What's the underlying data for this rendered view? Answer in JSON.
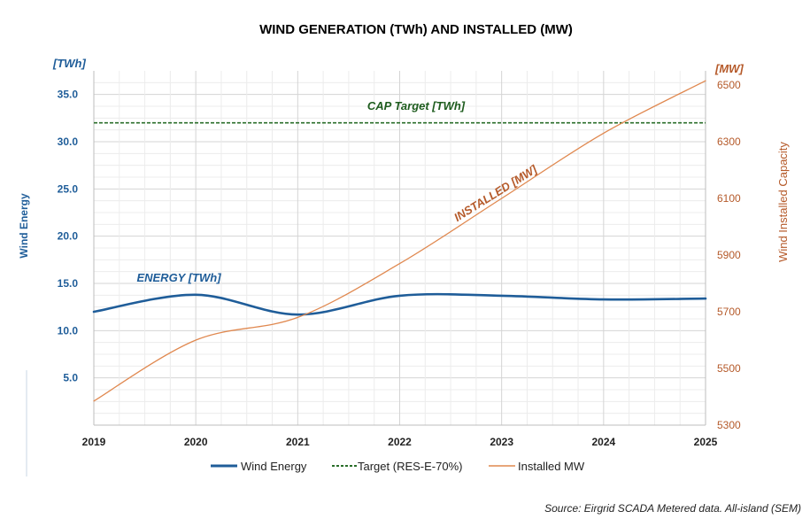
{
  "chart_data": {
    "type": "line",
    "title": "WIND GENERATION (TWh) AND INSTALLED (MW)",
    "x": [
      "2019",
      "2020",
      "2021",
      "2022",
      "2023",
      "2024",
      "2025"
    ],
    "y_left": {
      "label": "Wind  Energy",
      "unit": "[TWh]",
      "range": [
        0,
        37.5
      ],
      "ticks": [
        "5.0",
        "10.0",
        "15.0",
        "20.0",
        "25.0",
        "30.0",
        "35.0"
      ]
    },
    "y_right": {
      "label": "Wind Installed Capacity",
      "unit": "[MW]",
      "range": [
        5300,
        6550
      ],
      "ticks": [
        "5300",
        "5500",
        "5700",
        "5900",
        "6100",
        "6300",
        "6500"
      ]
    },
    "grid": true,
    "legend_position": "bottom",
    "series": [
      {
        "name": "Wind Energy",
        "axis": "left",
        "color": "#1f5d99",
        "style": "solid",
        "values": [
          12.0,
          13.8,
          11.7,
          13.7,
          13.7,
          13.3,
          13.4
        ]
      },
      {
        "name": "Target (RES-E-70%)",
        "axis": "left",
        "color": "#2a6e2a",
        "style": "dashed",
        "values": [
          32.0,
          32.0,
          32.0,
          32.0,
          32.0,
          32.0,
          32.0
        ]
      },
      {
        "name": "Installed MW",
        "axis": "right",
        "color": "#e0884f",
        "style": "solid",
        "values": [
          5385,
          5600,
          5680,
          5870,
          6100,
          6330,
          6515
        ]
      }
    ],
    "annotations": {
      "energy": "ENERGY [TWh]",
      "target": "CAP Target [TWh]",
      "installed": "INSTALLED [MW]"
    },
    "source": "Source: Eirgrid SCADA Metered data. All-island (SEM)"
  }
}
